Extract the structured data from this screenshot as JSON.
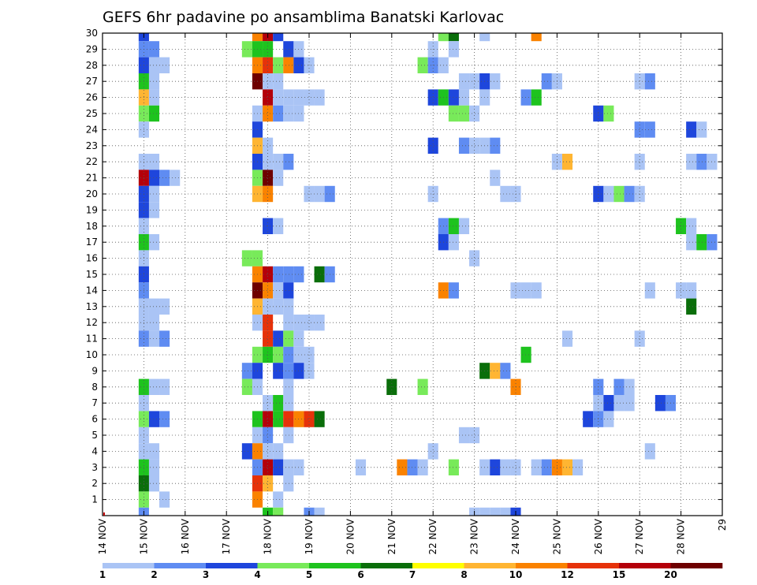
{
  "chart_data": {
    "type": "heatmap",
    "title": "GEFS 6hr padavine po ansamblima Banatski Karlovac",
    "xlabel": "",
    "ylabel": "",
    "x_ticks": [
      "14 NOV",
      "15 NOV",
      "16 NOV",
      "17 NOV",
      "18 NOV",
      "19 NOV",
      "20 NOV",
      "21 NOV",
      "22 NOV",
      "23 NOV",
      "24 NOV",
      "25 NOV",
      "26 NOV",
      "27 NOV",
      "28 NOV",
      "29"
    ],
    "x_range_days": [
      14,
      29
    ],
    "y_ticks": [
      1,
      2,
      3,
      4,
      5,
      6,
      7,
      8,
      9,
      10,
      11,
      12,
      13,
      14,
      15,
      16,
      17,
      18,
      19,
      20,
      21,
      22,
      23,
      24,
      25,
      26,
      27,
      28,
      29,
      30
    ],
    "y_range": [
      0,
      30
    ],
    "grid": true,
    "colorbar": {
      "labels": [
        "1",
        "2",
        "3",
        "4",
        "5",
        "6",
        "7",
        "8",
        "10",
        "12",
        "15",
        "20"
      ],
      "colors": [
        "#aac4f5",
        "#5f8cf2",
        "#1e46dc",
        "#78ea5a",
        "#1ec31e",
        "#0a6e0a",
        "#ffff00",
        "#ffb532",
        "#fa8200",
        "#e6320a",
        "#b4000a",
        "#6e0000"
      ]
    },
    "levels": [
      1,
      2,
      3,
      4,
      5,
      6,
      7,
      8,
      10,
      12,
      15,
      20
    ],
    "cells_columns": [
      "day",
      "member",
      "value_mm"
    ],
    "cells": [
      [
        15.0,
        30,
        3
      ],
      [
        15.0,
        29,
        2
      ],
      [
        15.25,
        29,
        2
      ],
      [
        15.0,
        28,
        3
      ],
      [
        15.25,
        28,
        1
      ],
      [
        15.5,
        28,
        1
      ],
      [
        15.0,
        27,
        5
      ],
      [
        15.25,
        27,
        1
      ],
      [
        15.0,
        26,
        8
      ],
      [
        15.25,
        26,
        1
      ],
      [
        15.0,
        25,
        4
      ],
      [
        15.25,
        25,
        5
      ],
      [
        15.0,
        24,
        1
      ],
      [
        15.0,
        22,
        1
      ],
      [
        15.25,
        22,
        1
      ],
      [
        15.0,
        21,
        15
      ],
      [
        15.25,
        21,
        3
      ],
      [
        15.5,
        21,
        2
      ],
      [
        15.75,
        21,
        1
      ],
      [
        15.0,
        20,
        3
      ],
      [
        15.25,
        20,
        1
      ],
      [
        15.0,
        19,
        3
      ],
      [
        15.25,
        19,
        1
      ],
      [
        15.0,
        18,
        1
      ],
      [
        15.0,
        17,
        5
      ],
      [
        15.25,
        17,
        1
      ],
      [
        15.0,
        16,
        1
      ],
      [
        15.0,
        15,
        3
      ],
      [
        15.0,
        14,
        2
      ],
      [
        15.0,
        13,
        1
      ],
      [
        15.25,
        13,
        1
      ],
      [
        15.5,
        13,
        1
      ],
      [
        15.0,
        12,
        1
      ],
      [
        15.25,
        12,
        1
      ],
      [
        15.0,
        11,
        2
      ],
      [
        15.25,
        11,
        1
      ],
      [
        15.5,
        11,
        2
      ],
      [
        15.0,
        8,
        5
      ],
      [
        15.25,
        8,
        1
      ],
      [
        15.5,
        8,
        1
      ],
      [
        15.0,
        7,
        1
      ],
      [
        15.0,
        6,
        4
      ],
      [
        15.25,
        6,
        3
      ],
      [
        15.5,
        6,
        2
      ],
      [
        15.0,
        5,
        1
      ],
      [
        15.0,
        4,
        1
      ],
      [
        15.25,
        4,
        1
      ],
      [
        15.0,
        3,
        5
      ],
      [
        15.25,
        3,
        1
      ],
      [
        15.0,
        2,
        6
      ],
      [
        15.25,
        2,
        1
      ],
      [
        15.0,
        1,
        4
      ],
      [
        15.5,
        1,
        1
      ],
      [
        15.0,
        0,
        2
      ],
      [
        17.75,
        30,
        10
      ],
      [
        18.0,
        30,
        15
      ],
      [
        18.25,
        30,
        3
      ],
      [
        17.5,
        29,
        4
      ],
      [
        17.75,
        29,
        5
      ],
      [
        18.0,
        29,
        5
      ],
      [
        18.5,
        29,
        3
      ],
      [
        18.75,
        29,
        1
      ],
      [
        17.75,
        28,
        10
      ],
      [
        18.0,
        28,
        12
      ],
      [
        18.25,
        28,
        4
      ],
      [
        18.5,
        28,
        10
      ],
      [
        18.75,
        28,
        3
      ],
      [
        19.0,
        28,
        1
      ],
      [
        17.75,
        27,
        20
      ],
      [
        18.0,
        27,
        1
      ],
      [
        18.25,
        27,
        1
      ],
      [
        18.0,
        26,
        15
      ],
      [
        18.25,
        26,
        1
      ],
      [
        18.5,
        26,
        1
      ],
      [
        18.75,
        26,
        1
      ],
      [
        19.0,
        26,
        1
      ],
      [
        19.25,
        26,
        1
      ],
      [
        17.75,
        25,
        1
      ],
      [
        18.0,
        25,
        10
      ],
      [
        18.25,
        25,
        2
      ],
      [
        18.5,
        25,
        1
      ],
      [
        18.75,
        25,
        1
      ],
      [
        17.75,
        24,
        3
      ],
      [
        17.75,
        23,
        8
      ],
      [
        18.0,
        23,
        1
      ],
      [
        17.75,
        22,
        3
      ],
      [
        18.0,
        22,
        1
      ],
      [
        18.25,
        22,
        1
      ],
      [
        18.5,
        22,
        2
      ],
      [
        17.75,
        21,
        4
      ],
      [
        18.0,
        21,
        20
      ],
      [
        18.25,
        21,
        1
      ],
      [
        17.75,
        20,
        8
      ],
      [
        18.0,
        20,
        10
      ],
      [
        19.0,
        20,
        1
      ],
      [
        19.25,
        20,
        1
      ],
      [
        19.5,
        20,
        2
      ],
      [
        18.0,
        18,
        3
      ],
      [
        18.25,
        18,
        1
      ],
      [
        17.5,
        16,
        4
      ],
      [
        17.75,
        16,
        4
      ],
      [
        17.75,
        15,
        10
      ],
      [
        18.0,
        15,
        15
      ],
      [
        18.25,
        15,
        2
      ],
      [
        18.5,
        15,
        2
      ],
      [
        18.75,
        15,
        2
      ],
      [
        19.25,
        15,
        6
      ],
      [
        19.5,
        15,
        2
      ],
      [
        17.75,
        14,
        20
      ],
      [
        18.0,
        14,
        10
      ],
      [
        18.25,
        14,
        1
      ],
      [
        18.5,
        14,
        3
      ],
      [
        17.75,
        13,
        8
      ],
      [
        18.0,
        13,
        1
      ],
      [
        18.25,
        13,
        1
      ],
      [
        18.5,
        13,
        1
      ],
      [
        17.75,
        12,
        1
      ],
      [
        18.0,
        12,
        12
      ],
      [
        18.5,
        12,
        1
      ],
      [
        18.75,
        12,
        1
      ],
      [
        19.0,
        12,
        1
      ],
      [
        19.25,
        12,
        1
      ],
      [
        18.0,
        11,
        12
      ],
      [
        18.25,
        11,
        3
      ],
      [
        18.5,
        11,
        4
      ],
      [
        18.75,
        11,
        1
      ],
      [
        17.75,
        10,
        4
      ],
      [
        18.0,
        10,
        5
      ],
      [
        18.25,
        10,
        4
      ],
      [
        18.5,
        10,
        2
      ],
      [
        18.75,
        10,
        1
      ],
      [
        19.0,
        10,
        1
      ],
      [
        17.5,
        9,
        2
      ],
      [
        17.75,
        9,
        3
      ],
      [
        18.25,
        9,
        3
      ],
      [
        18.5,
        9,
        2
      ],
      [
        18.75,
        9,
        3
      ],
      [
        19.0,
        9,
        1
      ],
      [
        17.5,
        8,
        4
      ],
      [
        17.75,
        8,
        1
      ],
      [
        18.5,
        8,
        1
      ],
      [
        18.0,
        7,
        1
      ],
      [
        18.25,
        7,
        5
      ],
      [
        18.5,
        7,
        1
      ],
      [
        17.75,
        6,
        5
      ],
      [
        18.0,
        6,
        15
      ],
      [
        18.25,
        6,
        5
      ],
      [
        18.5,
        6,
        12
      ],
      [
        18.75,
        6,
        10
      ],
      [
        19.0,
        6,
        12
      ],
      [
        19.25,
        6,
        6
      ],
      [
        17.75,
        5,
        1
      ],
      [
        18.0,
        5,
        2
      ],
      [
        18.5,
        5,
        1
      ],
      [
        17.5,
        4,
        3
      ],
      [
        17.75,
        4,
        10
      ],
      [
        18.0,
        4,
        1
      ],
      [
        18.25,
        4,
        1
      ],
      [
        17.75,
        3,
        2
      ],
      [
        18.0,
        3,
        15
      ],
      [
        18.25,
        3,
        3
      ],
      [
        18.5,
        3,
        1
      ],
      [
        18.75,
        3,
        1
      ],
      [
        17.75,
        2,
        12
      ],
      [
        18.0,
        2,
        8
      ],
      [
        18.5,
        2,
        1
      ],
      [
        17.75,
        1,
        10
      ],
      [
        18.25,
        1,
        1
      ],
      [
        18.0,
        0,
        5
      ],
      [
        18.25,
        0,
        4
      ],
      [
        19.0,
        0,
        2
      ],
      [
        19.25,
        0,
        1
      ],
      [
        22.25,
        30,
        4
      ],
      [
        22.5,
        30,
        6
      ],
      [
        23.25,
        30,
        1
      ],
      [
        24.5,
        30,
        10
      ],
      [
        22.0,
        29,
        1
      ],
      [
        22.5,
        29,
        1
      ],
      [
        21.75,
        28,
        4
      ],
      [
        22.0,
        28,
        2
      ],
      [
        22.25,
        28,
        1
      ],
      [
        22.75,
        27,
        1
      ],
      [
        23.0,
        27,
        1
      ],
      [
        23.25,
        27,
        3
      ],
      [
        23.5,
        27,
        1
      ],
      [
        24.75,
        27,
        2
      ],
      [
        25.0,
        27,
        1
      ],
      [
        27.0,
        27,
        1
      ],
      [
        27.25,
        27,
        2
      ],
      [
        22.0,
        26,
        3
      ],
      [
        22.25,
        26,
        5
      ],
      [
        22.5,
        26,
        3
      ],
      [
        22.75,
        26,
        1
      ],
      [
        23.25,
        26,
        1
      ],
      [
        24.25,
        26,
        2
      ],
      [
        24.5,
        26,
        5
      ],
      [
        22.5,
        25,
        4
      ],
      [
        22.75,
        25,
        4
      ],
      [
        23.0,
        25,
        1
      ],
      [
        26.0,
        25,
        3
      ],
      [
        26.25,
        25,
        4
      ],
      [
        27.0,
        24,
        2
      ],
      [
        27.25,
        24,
        2
      ],
      [
        28.25,
        24,
        3
      ],
      [
        28.5,
        24,
        1
      ],
      [
        22.0,
        23,
        3
      ],
      [
        22.75,
        23,
        2
      ],
      [
        23.0,
        23,
        1
      ],
      [
        23.25,
        23,
        1
      ],
      [
        23.5,
        23,
        2
      ],
      [
        25.0,
        22,
        1
      ],
      [
        25.25,
        22,
        8
      ],
      [
        27.0,
        22,
        1
      ],
      [
        28.25,
        22,
        1
      ],
      [
        28.5,
        22,
        2
      ],
      [
        28.75,
        22,
        1
      ],
      [
        23.5,
        21,
        1
      ],
      [
        22.0,
        20,
        1
      ],
      [
        23.75,
        20,
        1
      ],
      [
        24.0,
        20,
        1
      ],
      [
        26.0,
        20,
        3
      ],
      [
        26.25,
        20,
        1
      ],
      [
        26.5,
        20,
        4
      ],
      [
        26.75,
        20,
        2
      ],
      [
        27.0,
        20,
        1
      ],
      [
        22.25,
        18,
        2
      ],
      [
        22.5,
        18,
        5
      ],
      [
        22.75,
        18,
        1
      ],
      [
        28.0,
        18,
        5
      ],
      [
        28.25,
        18,
        1
      ],
      [
        22.25,
        17,
        3
      ],
      [
        22.5,
        17,
        1
      ],
      [
        28.25,
        17,
        1
      ],
      [
        28.5,
        17,
        5
      ],
      [
        28.75,
        17,
        2
      ],
      [
        23.0,
        16,
        1
      ],
      [
        22.25,
        14,
        10
      ],
      [
        22.5,
        14,
        2
      ],
      [
        24.0,
        14,
        1
      ],
      [
        24.25,
        14,
        1
      ],
      [
        24.5,
        14,
        1
      ],
      [
        27.25,
        14,
        1
      ],
      [
        28.0,
        14,
        1
      ],
      [
        28.25,
        14,
        1
      ],
      [
        28.25,
        13,
        6
      ],
      [
        25.25,
        11,
        1
      ],
      [
        27.0,
        11,
        1
      ],
      [
        24.25,
        10,
        5
      ],
      [
        23.25,
        9,
        6
      ],
      [
        23.5,
        9,
        8
      ],
      [
        23.75,
        9,
        2
      ],
      [
        21.0,
        8,
        6
      ],
      [
        21.75,
        8,
        4
      ],
      [
        24.0,
        8,
        10
      ],
      [
        26.0,
        8,
        2
      ],
      [
        26.5,
        8,
        2
      ],
      [
        26.75,
        8,
        1
      ],
      [
        26.0,
        7,
        1
      ],
      [
        26.25,
        7,
        3
      ],
      [
        26.5,
        7,
        1
      ],
      [
        26.75,
        7,
        1
      ],
      [
        27.5,
        7,
        3
      ],
      [
        27.75,
        7,
        2
      ],
      [
        25.75,
        6,
        3
      ],
      [
        26.0,
        6,
        2
      ],
      [
        26.25,
        6,
        1
      ],
      [
        22.75,
        5,
        1
      ],
      [
        23.0,
        5,
        1
      ],
      [
        22.0,
        4,
        1
      ],
      [
        27.25,
        4,
        1
      ],
      [
        20.25,
        3,
        1
      ],
      [
        21.25,
        3,
        10
      ],
      [
        21.5,
        3,
        2
      ],
      [
        21.75,
        3,
        1
      ],
      [
        22.5,
        3,
        4
      ],
      [
        23.25,
        3,
        1
      ],
      [
        23.5,
        3,
        3
      ],
      [
        23.75,
        3,
        1
      ],
      [
        24.0,
        3,
        1
      ],
      [
        24.5,
        3,
        1
      ],
      [
        24.75,
        3,
        2
      ],
      [
        25.0,
        3,
        10
      ],
      [
        25.25,
        3,
        8
      ],
      [
        25.5,
        3,
        1
      ],
      [
        23.0,
        0,
        1
      ],
      [
        23.25,
        0,
        1
      ],
      [
        23.5,
        0,
        1
      ],
      [
        23.75,
        0,
        1
      ],
      [
        24.0,
        0,
        3
      ]
    ]
  }
}
